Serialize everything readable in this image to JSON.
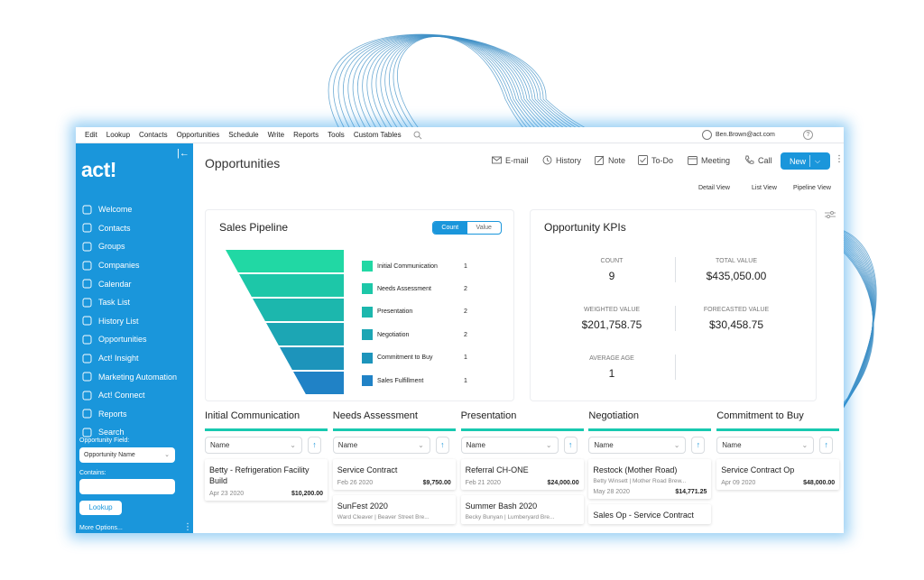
{
  "menu": [
    "Edit",
    "Lookup",
    "Contacts",
    "Opportunities",
    "Schedule",
    "Write",
    "Reports",
    "Tools",
    "Custom Tables"
  ],
  "user": {
    "email": "Ben.Brown@act.com",
    "help": "?"
  },
  "sidebar": {
    "logo": "act!",
    "items": [
      {
        "label": "Welcome",
        "icon": "grid-icon"
      },
      {
        "label": "Contacts",
        "icon": "contact-icon"
      },
      {
        "label": "Groups",
        "icon": "groups-icon"
      },
      {
        "label": "Companies",
        "icon": "company-icon"
      },
      {
        "label": "Calendar",
        "icon": "calendar-icon"
      },
      {
        "label": "Task List",
        "icon": "checkbox-icon"
      },
      {
        "label": "History List",
        "icon": "history-icon"
      },
      {
        "label": "Opportunities",
        "icon": "opportunities-icon"
      },
      {
        "label": "Act! Insight",
        "icon": "eye-icon"
      },
      {
        "label": "Marketing Automation",
        "icon": "monitor-icon"
      },
      {
        "label": "Act! Connect",
        "icon": "connect-icon"
      },
      {
        "label": "Reports",
        "icon": "reports-icon"
      },
      {
        "label": "Search",
        "icon": "search-icon"
      }
    ],
    "opportunity_field_label": "Opportunity Field:",
    "opportunity_field_value": "Opportunity Name",
    "contains_label": "Contains:",
    "lookup_button": "Lookup",
    "more_options": "More Options..."
  },
  "header": {
    "title": "Opportunities",
    "actions": {
      "email": "E-mail",
      "history": "History",
      "note": "Note",
      "todo": "To-Do",
      "meeting": "Meeting",
      "call": "Call"
    },
    "new_button": "New",
    "views": {
      "detail": "Detail View",
      "list": "List View",
      "pipeline": "Pipeline View"
    }
  },
  "pipeline": {
    "title": "Sales Pipeline",
    "toggle": {
      "count": "Count",
      "value": "Value"
    }
  },
  "chart_data": {
    "type": "funnel",
    "title": "Sales Pipeline",
    "categories": [
      "Initial Communication",
      "Needs Assessment",
      "Presentation",
      "Negotiation",
      "Commitment to Buy",
      "Sales Fulfillment"
    ],
    "values": [
      1,
      2,
      2,
      2,
      1,
      1
    ],
    "colors": [
      "#21d8a4",
      "#1dc7a8",
      "#1cb7ad",
      "#1ca6b4",
      "#1d94bb",
      "#2082c6"
    ],
    "legend_position": "right"
  },
  "kpis": {
    "title": "Opportunity KPIs",
    "count_label": "COUNT",
    "count": "9",
    "total_label": "TOTAL VALUE",
    "total": "$435,050.00",
    "weighted_label": "WEIGHTED VALUE",
    "weighted": "$201,758.75",
    "forecast_label": "FORECASTED VALUE",
    "forecast": "$30,458.75",
    "age_label": "AVERAGE AGE",
    "age": "1"
  },
  "columns": [
    {
      "title": "Initial Communication",
      "sort": "Name",
      "cards": [
        {
          "title": "Betty - Refrigeration Facility Build",
          "sub": "",
          "date": "Apr 23 2020",
          "amount": "$10,200.00"
        }
      ]
    },
    {
      "title": "Needs Assessment",
      "sort": "Name",
      "cards": [
        {
          "title": "Service Contract",
          "sub": "",
          "date": "Feb 26 2020",
          "amount": "$9,750.00"
        },
        {
          "title": "SunFest 2020",
          "sub": "Ward Cleaver | Beaver Street Bre...",
          "date": "",
          "amount": ""
        }
      ]
    },
    {
      "title": "Presentation",
      "sort": "Name",
      "cards": [
        {
          "title": "Referral CH-ONE",
          "sub": "",
          "date": "Feb 21 2020",
          "amount": "$24,000.00"
        },
        {
          "title": "Summer Bash 2020",
          "sub": "Becky Bunyan | Lumberyard Bre...",
          "date": "",
          "amount": ""
        }
      ]
    },
    {
      "title": "Negotiation",
      "sort": "Name",
      "cards": [
        {
          "title": "Restock (Mother Road)",
          "sub": "Betty Winsett | Mother Road Brew...",
          "date": "May 28 2020",
          "amount": "$14,771.25"
        },
        {
          "title": "Sales Op - Service Contract",
          "sub": "",
          "date": "",
          "amount": ""
        }
      ]
    },
    {
      "title": "Commitment to Buy",
      "sort": "Name",
      "cards": [
        {
          "title": "Service Contract Op",
          "sub": "",
          "date": "Apr 09 2020",
          "amount": "$48,000.00"
        }
      ]
    }
  ]
}
